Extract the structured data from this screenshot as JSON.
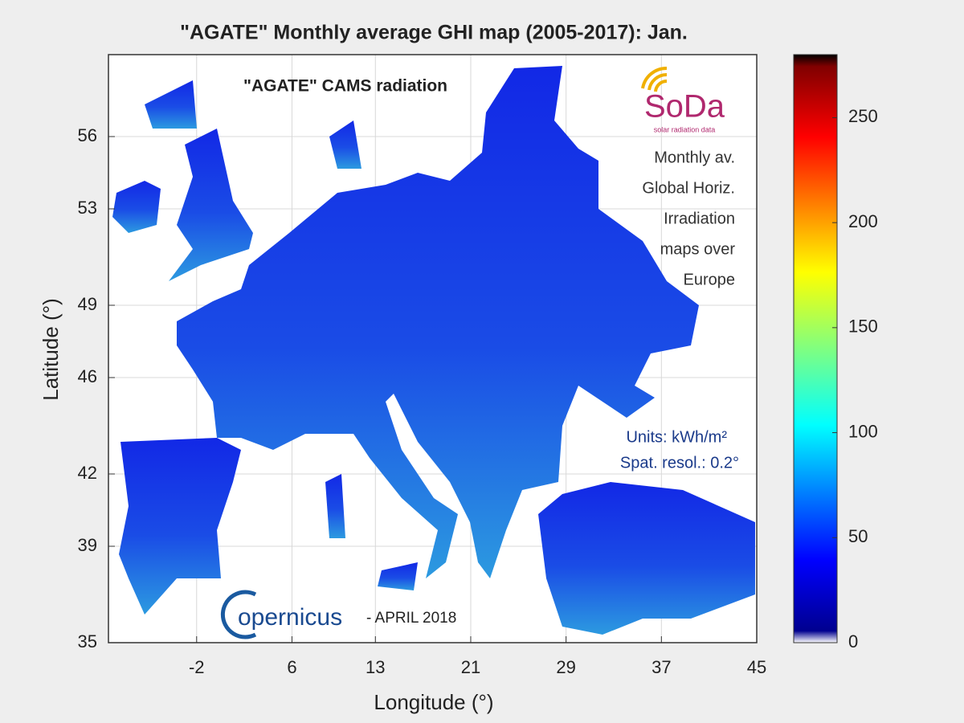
{
  "map": {
    "title": "\"AGATE\" Monthly average GHI map (2005-2017): Jan.",
    "xlabel": "Longitude (°)",
    "ylabel": "Latitude (°)",
    "xlim": [
      -9.4,
      45
    ],
    "ylim": [
      35,
      59.4
    ],
    "xticks": [
      -2,
      6,
      13,
      21,
      29,
      37,
      45
    ],
    "yticks": [
      35,
      39,
      42,
      46,
      49,
      53,
      56
    ],
    "grid": true,
    "colorbar": {
      "lim": [
        0,
        280
      ],
      "ticks": [
        0,
        50,
        100,
        150,
        200,
        250
      ]
    },
    "annotations": {
      "subtitle": "\"AGATE\" CAMS radiation",
      "description": [
        "Monthly av.",
        "Global Horiz.",
        "Irradiation",
        "maps over",
        "Europe"
      ],
      "units": "Units: kWh/m²",
      "resolution": "Spat. resol.: 0.2°",
      "logo_soda": "SoDa",
      "logo_soda_tagline": "solar radiation data",
      "logo_copernicus": "opernicus",
      "date": "- APRIL 2018"
    }
  }
}
